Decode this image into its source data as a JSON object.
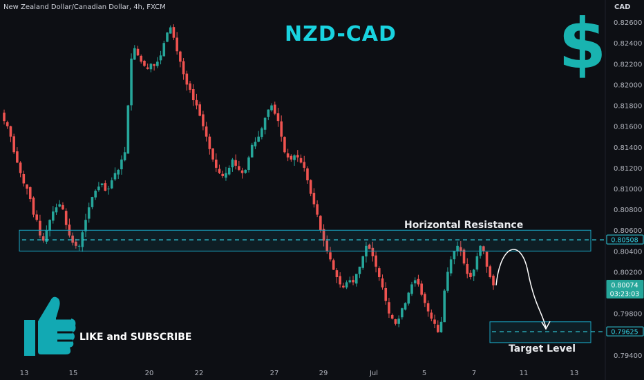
{
  "header": {
    "symbol": "New Zealand Dollar/Canadian Dollar, 4h, FXCM",
    "currency": "CAD"
  },
  "icons": {
    "dollar_symbol": "$",
    "thumb": "thumbs-up-icon"
  },
  "cta": {
    "text": "LIKE and SUBSCRIBE"
  },
  "colors": {
    "background": "#0d0f14",
    "up": "#26a69a",
    "down": "#ef5350",
    "accent": "#19d3e0",
    "box": "#1aa6c4"
  },
  "chart_data": {
    "type": "candlestick",
    "title": "NZD-CAD",
    "ylim": [
      0.7932,
      0.8272
    ],
    "y_ticks": [
      "0.82600",
      "0.82400",
      "0.82200",
      "0.82000",
      "0.81800",
      "0.81600",
      "0.81400",
      "0.81200",
      "0.81000",
      "0.80800",
      "0.80600",
      "0.80400",
      "0.80200",
      "0.79800",
      "0.79400"
    ],
    "x_ticks": [
      "13",
      "15",
      "20",
      "22",
      "27",
      "29",
      "Jul",
      "5",
      "7",
      "11",
      "13"
    ],
    "price_labels": {
      "resistance": "0.80508",
      "current": "0.80074",
      "countdown": "03:23:03",
      "target": "0.79625"
    },
    "annotations": {
      "resistance_label": "Horizontal Resistance",
      "target_label": "Target Level",
      "resistance_zone": [
        0.804,
        0.806
      ],
      "resistance_level": 0.80508,
      "target_zone": [
        0.7952,
        0.7972
      ],
      "target_level": 0.79625
    },
    "close_path": [
      0.8165,
      0.816,
      0.815,
      0.8135,
      0.8125,
      0.8115,
      0.8105,
      0.81,
      0.809,
      0.8075,
      0.807,
      0.8055,
      0.805,
      0.806,
      0.807,
      0.8078,
      0.8082,
      0.8085,
      0.808,
      0.8065,
      0.8055,
      0.8048,
      0.8045,
      0.8045,
      0.8058,
      0.807,
      0.8082,
      0.8092,
      0.8098,
      0.8102,
      0.8105,
      0.8098,
      0.81,
      0.8108,
      0.8115,
      0.8118,
      0.8128,
      0.8135,
      0.818,
      0.8225,
      0.8235,
      0.8228,
      0.8222,
      0.8218,
      0.8215,
      0.822,
      0.8218,
      0.8222,
      0.8228,
      0.824,
      0.825,
      0.8255,
      0.8245,
      0.8232,
      0.8222,
      0.821,
      0.82,
      0.8195,
      0.8185,
      0.818,
      0.817,
      0.816,
      0.815,
      0.8138,
      0.8128,
      0.812,
      0.8115,
      0.8112,
      0.8115,
      0.812,
      0.8128,
      0.8122,
      0.8118,
      0.8115,
      0.8118,
      0.813,
      0.8142,
      0.8145,
      0.815,
      0.8158,
      0.8168,
      0.8176,
      0.818,
      0.8172,
      0.8165,
      0.815,
      0.8135,
      0.813,
      0.8128,
      0.8132,
      0.813,
      0.8125,
      0.812,
      0.8108,
      0.8095,
      0.8085,
      0.8075,
      0.806,
      0.805,
      0.804,
      0.8032,
      0.8022,
      0.8015,
      0.8008,
      0.8005,
      0.801,
      0.8012,
      0.801,
      0.8018,
      0.8025,
      0.8035,
      0.8045,
      0.8042,
      0.8035,
      0.8025,
      0.8015,
      0.8005,
      0.7992,
      0.798,
      0.7975,
      0.797,
      0.7975,
      0.7985,
      0.799,
      0.8,
      0.8008,
      0.8012,
      0.8008,
      0.7998,
      0.799,
      0.7982,
      0.7975,
      0.797,
      0.7962,
      0.7972,
      0.8002,
      0.802,
      0.8032,
      0.804,
      0.8045,
      0.804,
      0.8028,
      0.8018,
      0.8015,
      0.8022,
      0.8035,
      0.8045,
      0.804,
      0.8025,
      0.8015,
      0.8007
    ]
  }
}
